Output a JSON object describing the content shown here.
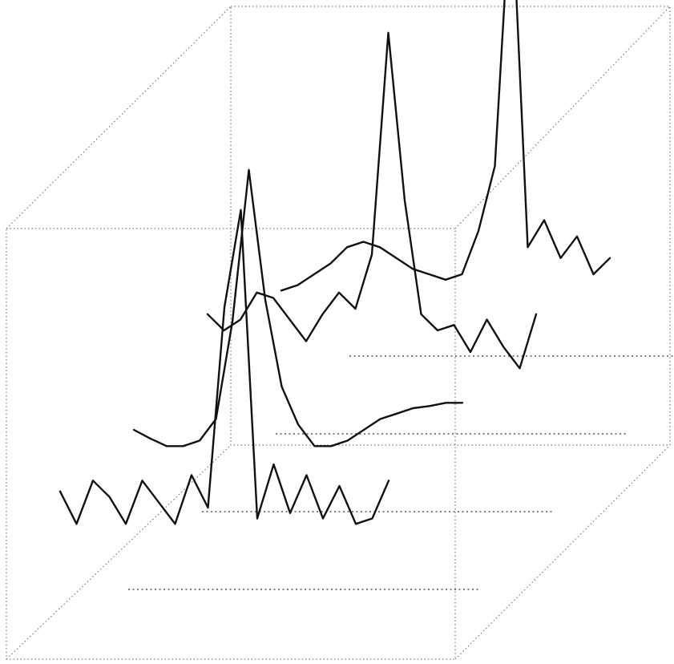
{
  "chart_data": {
    "type": "line",
    "title": "",
    "xlabel": "",
    "ylabel": "",
    "zlabel": "",
    "grid": false,
    "legend": "none",
    "colors": {
      "trace": "#111111",
      "box": "#7a7a7a",
      "background": "#ffffff"
    },
    "x": [
      0,
      1,
      2,
      3,
      4,
      5,
      6,
      7,
      8,
      9,
      10,
      11,
      12,
      13,
      14,
      15,
      16,
      17,
      18,
      19,
      20
    ],
    "series": [
      {
        "values": [
          0.35,
          0.05,
          0.45,
          0.3,
          0.05,
          0.45,
          0.25,
          0.05,
          0.5,
          0.2,
          2.05,
          2.95,
          0.1,
          0.6,
          0.15,
          0.5,
          0.1,
          0.4,
          0.05,
          0.1,
          0.45
        ]
      },
      {
        "values": [
          0.2,
          0.12,
          0.05,
          0.05,
          0.1,
          0.3,
          1.2,
          2.6,
          1.4,
          0.6,
          0.25,
          0.05,
          0.05,
          0.1,
          0.2,
          0.3,
          0.35,
          0.4,
          0.42,
          0.45,
          0.45
        ]
      },
      {
        "values": [
          0.55,
          0.4,
          0.5,
          0.75,
          0.7,
          0.5,
          0.3,
          0.55,
          0.75,
          0.6,
          1.1,
          3.15,
          1.6,
          0.55,
          0.4,
          0.45,
          0.2,
          0.5,
          0.25,
          0.05,
          0.55
        ]
      },
      {
        "values": [
          0.05,
          0.1,
          0.2,
          0.3,
          0.45,
          0.5,
          0.45,
          0.35,
          0.25,
          0.2,
          0.15,
          0.2,
          0.6,
          1.2,
          3.8,
          0.45,
          0.7,
          0.35,
          0.55,
          0.2,
          0.35
        ]
      }
    ]
  }
}
